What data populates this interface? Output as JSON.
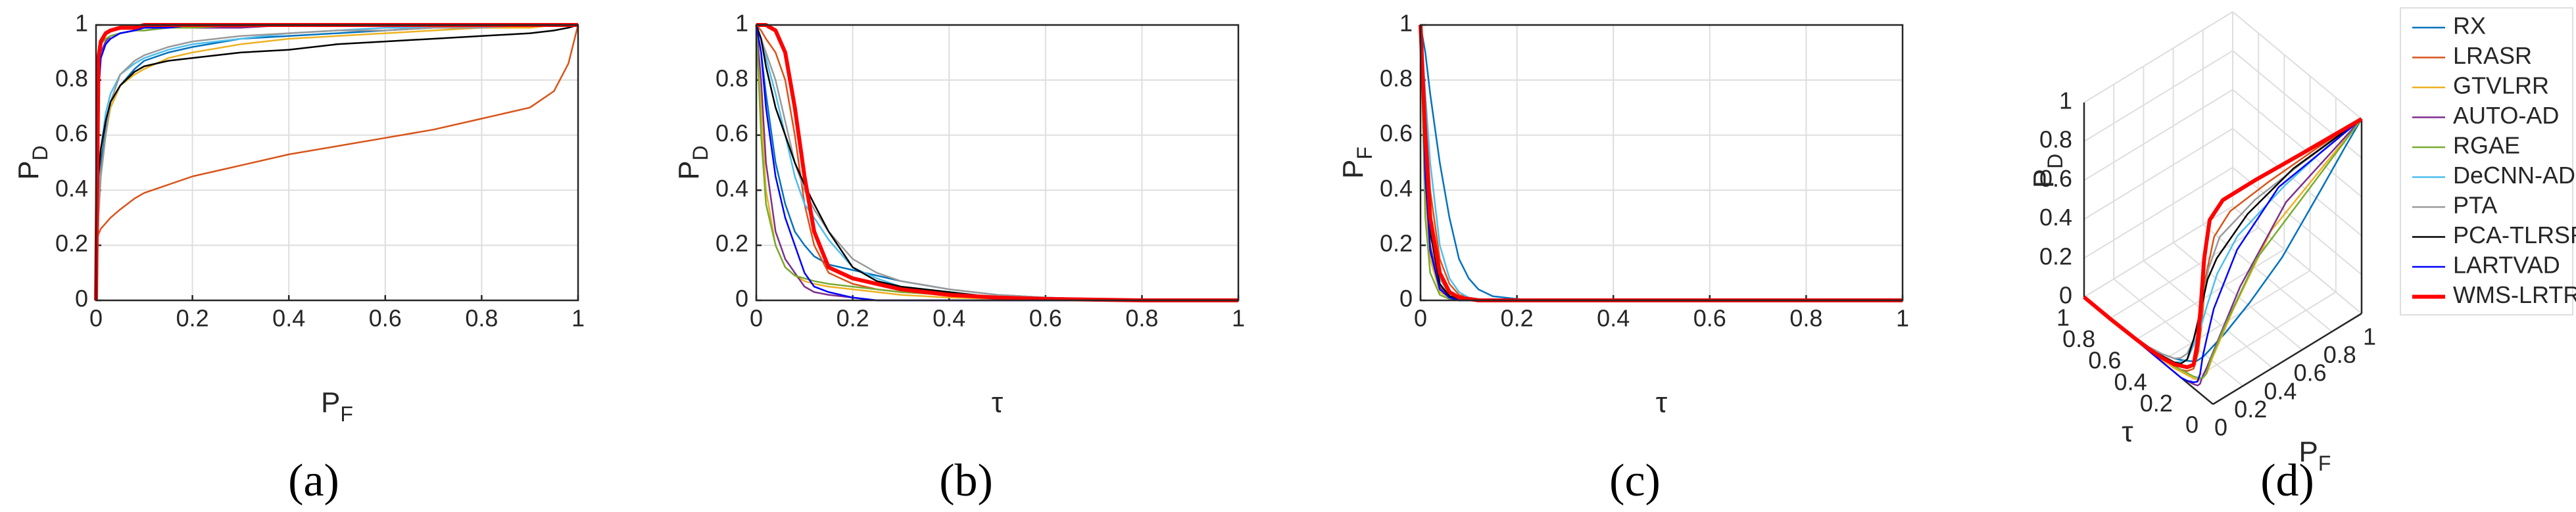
{
  "chart_data": [
    {
      "type": "line",
      "caption": "(a)",
      "xlabel": [
        "P",
        "F"
      ],
      "ylabel": [
        "P",
        "D"
      ],
      "xlim": [
        0,
        1
      ],
      "ylim": [
        0,
        1
      ],
      "xticks": [
        0,
        0.2,
        0.4,
        0.6,
        0.8,
        1
      ],
      "yticks": [
        0,
        0.2,
        0.4,
        0.6,
        0.8,
        1
      ],
      "grid": true,
      "x": [
        0,
        0.005,
        0.01,
        0.02,
        0.03,
        0.05,
        0.08,
        0.1,
        0.15,
        0.2,
        0.3,
        0.4,
        0.5,
        0.6,
        0.7,
        0.8,
        0.9,
        0.95,
        0.98,
        1
      ],
      "series": [
        {
          "color": "#0072BD",
          "width": 2.5,
          "values": [
            0,
            0.35,
            0.5,
            0.62,
            0.7,
            0.78,
            0.84,
            0.87,
            0.9,
            0.92,
            0.95,
            0.96,
            0.97,
            0.98,
            0.99,
            0.99,
            1,
            1,
            1,
            1
          ]
        },
        {
          "color": "#D95319",
          "width": 2.5,
          "values": [
            0.2,
            0.24,
            0.26,
            0.28,
            0.3,
            0.33,
            0.37,
            0.39,
            0.42,
            0.45,
            0.49,
            0.53,
            0.56,
            0.59,
            0.62,
            0.66,
            0.7,
            0.76,
            0.86,
            1
          ]
        },
        {
          "color": "#EDB120",
          "width": 2.5,
          "values": [
            0,
            0.3,
            0.45,
            0.6,
            0.7,
            0.78,
            0.82,
            0.84,
            0.88,
            0.9,
            0.93,
            0.95,
            0.96,
            0.97,
            0.98,
            0.99,
            0.99,
            1,
            1,
            1
          ]
        },
        {
          "color": "#7E2F8E",
          "width": 2.5,
          "values": [
            0,
            0.8,
            0.9,
            0.94,
            0.96,
            0.97,
            0.98,
            0.98,
            0.99,
            0.99,
            0.99,
            1,
            1,
            1,
            1,
            1,
            1,
            1,
            1,
            1
          ]
        },
        {
          "color": "#77AC30",
          "width": 2.5,
          "values": [
            0,
            0.9,
            0.93,
            0.95,
            0.96,
            0.97,
            0.98,
            0.98,
            0.99,
            0.99,
            1,
            1,
            1,
            1,
            1,
            1,
            1,
            1,
            1,
            1
          ]
        },
        {
          "color": "#4DBEEE",
          "width": 2.5,
          "values": [
            0,
            0.4,
            0.55,
            0.68,
            0.75,
            0.82,
            0.86,
            0.88,
            0.91,
            0.93,
            0.95,
            0.97,
            0.98,
            0.99,
            0.99,
            1,
            1,
            1,
            1,
            1
          ]
        },
        {
          "color": "#9A9A9A",
          "width": 2.5,
          "values": [
            0,
            0.3,
            0.45,
            0.6,
            0.72,
            0.82,
            0.87,
            0.89,
            0.92,
            0.94,
            0.96,
            0.97,
            0.98,
            0.98,
            0.99,
            0.99,
            1,
            1,
            1,
            1
          ]
        },
        {
          "color": "#000000",
          "width": 2.5,
          "values": [
            0,
            0.45,
            0.55,
            0.65,
            0.72,
            0.78,
            0.83,
            0.85,
            0.87,
            0.88,
            0.9,
            0.91,
            0.93,
            0.94,
            0.95,
            0.96,
            0.97,
            0.98,
            0.99,
            1
          ]
        },
        {
          "color": "#0000FF",
          "width": 2.5,
          "values": [
            0,
            0.75,
            0.88,
            0.93,
            0.95,
            0.97,
            0.98,
            0.99,
            0.99,
            1,
            1,
            1,
            1,
            1,
            1,
            1,
            1,
            1,
            1,
            1
          ]
        },
        {
          "color": "#FF0000",
          "width": 6,
          "values": [
            0,
            0.88,
            0.94,
            0.97,
            0.98,
            0.99,
            0.99,
            1,
            1,
            1,
            1,
            1,
            1,
            1,
            1,
            1,
            1,
            1,
            1,
            1
          ]
        }
      ]
    },
    {
      "type": "line",
      "caption": "(b)",
      "xlabel": [
        "τ"
      ],
      "ylabel": [
        "P",
        "D"
      ],
      "xlim": [
        0,
        1
      ],
      "ylim": [
        0,
        1
      ],
      "xticks": [
        0,
        0.2,
        0.4,
        0.6,
        0.8,
        1
      ],
      "yticks": [
        0,
        0.2,
        0.4,
        0.6,
        0.8,
        1
      ],
      "grid": true,
      "x": [
        0,
        0.01,
        0.02,
        0.04,
        0.06,
        0.08,
        0.1,
        0.12,
        0.15,
        0.2,
        0.25,
        0.3,
        0.4,
        0.5,
        0.6,
        0.8,
        1
      ],
      "series": [
        {
          "color": "#0072BD",
          "width": 2.5,
          "values": [
            1,
            0.9,
            0.75,
            0.5,
            0.35,
            0.25,
            0.2,
            0.16,
            0.13,
            0.11,
            0.09,
            0.07,
            0.04,
            0.02,
            0.01,
            0,
            0
          ]
        },
        {
          "color": "#D95319",
          "width": 2.5,
          "values": [
            1,
            0.98,
            0.95,
            0.9,
            0.8,
            0.6,
            0.35,
            0.2,
            0.1,
            0.06,
            0.04,
            0.03,
            0.02,
            0.01,
            0.005,
            0,
            0
          ]
        },
        {
          "color": "#EDB120",
          "width": 2.5,
          "values": [
            1,
            0.7,
            0.4,
            0.2,
            0.12,
            0.09,
            0.07,
            0.06,
            0.05,
            0.04,
            0.03,
            0.02,
            0.01,
            0.005,
            0,
            0,
            0
          ]
        },
        {
          "color": "#7E2F8E",
          "width": 2.5,
          "values": [
            1,
            0.8,
            0.5,
            0.25,
            0.15,
            0.1,
            0.05,
            0.03,
            0.02,
            0.01,
            0,
            0,
            0,
            0,
            0,
            0,
            0
          ]
        },
        {
          "color": "#77AC30",
          "width": 2.5,
          "values": [
            1,
            0.6,
            0.35,
            0.2,
            0.12,
            0.09,
            0.08,
            0.07,
            0.06,
            0.05,
            0.04,
            0.03,
            0.02,
            0.01,
            0,
            0,
            0
          ]
        },
        {
          "color": "#4DBEEE",
          "width": 2.5,
          "values": [
            1,
            0.95,
            0.88,
            0.75,
            0.6,
            0.45,
            0.35,
            0.3,
            0.22,
            0.12,
            0.08,
            0.05,
            0.03,
            0.01,
            0,
            0,
            0
          ]
        },
        {
          "color": "#9A9A9A",
          "width": 2.5,
          "values": [
            1,
            0.95,
            0.9,
            0.8,
            0.65,
            0.5,
            0.4,
            0.33,
            0.25,
            0.15,
            0.1,
            0.07,
            0.04,
            0.02,
            0.01,
            0,
            0
          ]
        },
        {
          "color": "#000000",
          "width": 2.5,
          "values": [
            1,
            0.95,
            0.85,
            0.7,
            0.6,
            0.5,
            0.42,
            0.35,
            0.25,
            0.12,
            0.07,
            0.05,
            0.03,
            0.01,
            0.005,
            0,
            0
          ]
        },
        {
          "color": "#0000FF",
          "width": 2.5,
          "values": [
            1,
            0.9,
            0.7,
            0.45,
            0.3,
            0.2,
            0.1,
            0.05,
            0.03,
            0.01,
            0,
            0,
            0,
            0,
            0,
            0,
            0
          ]
        },
        {
          "color": "#FF0000",
          "width": 6,
          "values": [
            1,
            1,
            1,
            0.98,
            0.9,
            0.7,
            0.45,
            0.25,
            0.12,
            0.08,
            0.06,
            0.04,
            0.02,
            0.01,
            0.005,
            0,
            0
          ]
        }
      ]
    },
    {
      "type": "line",
      "caption": "(c)",
      "xlabel": [
        "τ"
      ],
      "ylabel": [
        "P",
        "F"
      ],
      "xlim": [
        0,
        1
      ],
      "ylim": [
        0,
        1
      ],
      "xticks": [
        0,
        0.2,
        0.4,
        0.6,
        0.8,
        1
      ],
      "yticks": [
        0,
        0.2,
        0.4,
        0.6,
        0.8,
        1
      ],
      "grid": true,
      "x": [
        0,
        0.01,
        0.02,
        0.04,
        0.06,
        0.08,
        0.1,
        0.12,
        0.15,
        0.2,
        0.25,
        0.3,
        0.4,
        0.5,
        0.6,
        0.8,
        1
      ],
      "series": [
        {
          "color": "#0072BD",
          "width": 2.5,
          "values": [
            1,
            0.9,
            0.75,
            0.5,
            0.3,
            0.15,
            0.08,
            0.04,
            0.015,
            0.005,
            0,
            0,
            0,
            0,
            0,
            0,
            0
          ]
        },
        {
          "color": "#D95319",
          "width": 2.5,
          "values": [
            1,
            0.7,
            0.4,
            0.15,
            0.06,
            0.02,
            0.01,
            0.005,
            0,
            0,
            0,
            0,
            0,
            0,
            0,
            0,
            0
          ]
        },
        {
          "color": "#EDB120",
          "width": 2.5,
          "values": [
            1,
            0.4,
            0.15,
            0.03,
            0.01,
            0,
            0,
            0,
            0,
            0,
            0,
            0,
            0,
            0,
            0,
            0,
            0
          ]
        },
        {
          "color": "#7E2F8E",
          "width": 2.5,
          "values": [
            1,
            0.5,
            0.2,
            0.05,
            0.01,
            0,
            0,
            0,
            0,
            0,
            0,
            0,
            0,
            0,
            0,
            0,
            0
          ]
        },
        {
          "color": "#77AC30",
          "width": 2.5,
          "values": [
            1,
            0.3,
            0.1,
            0.02,
            0.005,
            0,
            0,
            0,
            0,
            0,
            0,
            0,
            0,
            0,
            0,
            0,
            0
          ]
        },
        {
          "color": "#4DBEEE",
          "width": 2.5,
          "values": [
            1,
            0.75,
            0.5,
            0.2,
            0.08,
            0.03,
            0.01,
            0.005,
            0,
            0,
            0,
            0,
            0,
            0,
            0,
            0,
            0
          ]
        },
        {
          "color": "#9A9A9A",
          "width": 2.5,
          "values": [
            1,
            0.6,
            0.3,
            0.08,
            0.02,
            0.005,
            0,
            0,
            0,
            0,
            0,
            0,
            0,
            0,
            0,
            0,
            0
          ]
        },
        {
          "color": "#000000",
          "width": 2.5,
          "values": [
            1,
            0.55,
            0.25,
            0.06,
            0.015,
            0.005,
            0,
            0,
            0,
            0,
            0,
            0,
            0,
            0,
            0,
            0,
            0
          ]
        },
        {
          "color": "#0000FF",
          "width": 2.5,
          "values": [
            1,
            0.45,
            0.18,
            0.04,
            0.01,
            0,
            0,
            0,
            0,
            0,
            0,
            0,
            0,
            0,
            0,
            0,
            0
          ]
        },
        {
          "color": "#FF0000",
          "width": 6,
          "values": [
            1,
            0.6,
            0.3,
            0.1,
            0.03,
            0.01,
            0.005,
            0,
            0,
            0,
            0,
            0,
            0,
            0,
            0,
            0,
            0
          ]
        }
      ]
    },
    {
      "type": "line3d",
      "caption": "(d)",
      "xlabel": [
        "P",
        "F"
      ],
      "ylabel": "τ",
      "zlabel": [
        "P",
        "D"
      ],
      "xlim": [
        0,
        1
      ],
      "ylim": [
        0,
        1
      ],
      "zlim": [
        0,
        1
      ],
      "xticks": [
        0,
        0.2,
        0.4,
        0.6,
        0.8,
        1
      ],
      "yticks": [
        0,
        0.2,
        0.4,
        0.6,
        0.8,
        1
      ],
      "zticks": [
        0,
        0.2,
        0.4,
        0.6,
        0.8,
        1
      ],
      "grid": true,
      "legend": "outside-right",
      "series": [
        {
          "name": "RX",
          "color": "#0072BD",
          "width": 2.5
        },
        {
          "name": "LRASR",
          "color": "#D95319",
          "width": 2.5
        },
        {
          "name": "GTVLRR",
          "color": "#EDB120",
          "width": 2.5
        },
        {
          "name": "AUTO-AD",
          "color": "#7E2F8E",
          "width": 2.5
        },
        {
          "name": "RGAE",
          "color": "#77AC30",
          "width": 2.5
        },
        {
          "name": "DeCNN-AD",
          "color": "#4DBEEE",
          "width": 2.5
        },
        {
          "name": "PTA",
          "color": "#9A9A9A",
          "width": 2.5
        },
        {
          "name": "PCA-TLRSR",
          "color": "#000000",
          "width": 2.5
        },
        {
          "name": "LARTVAD",
          "color": "#0000FF",
          "width": 2.5
        },
        {
          "name": "WMS-LRTR",
          "color": "#FF0000",
          "width": 6
        }
      ]
    }
  ]
}
